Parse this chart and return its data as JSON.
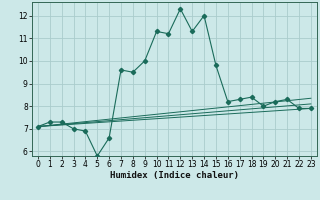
{
  "xlabel": "Humidex (Indice chaleur)",
  "bg_color": "#cce8e8",
  "grid_color": "#aacccc",
  "line_color": "#1a6b5a",
  "xlim": [
    -0.5,
    23.5
  ],
  "ylim": [
    5.8,
    12.6
  ],
  "yticks": [
    6,
    7,
    8,
    9,
    10,
    11,
    12
  ],
  "xticks": [
    0,
    1,
    2,
    3,
    4,
    5,
    6,
    7,
    8,
    9,
    10,
    11,
    12,
    13,
    14,
    15,
    16,
    17,
    18,
    19,
    20,
    21,
    22,
    23
  ],
  "series_main": {
    "x": [
      0,
      1,
      2,
      3,
      4,
      5,
      6,
      7,
      8,
      9,
      10,
      11,
      12,
      13,
      14,
      15,
      16,
      17,
      18,
      19,
      20,
      21,
      22,
      23
    ],
    "y": [
      7.1,
      7.3,
      7.3,
      7.0,
      6.9,
      5.8,
      6.6,
      9.6,
      9.5,
      10.0,
      11.3,
      11.2,
      12.3,
      11.3,
      12.0,
      9.8,
      8.2,
      8.3,
      8.4,
      8.0,
      8.2,
      8.3,
      7.9,
      7.9
    ]
  },
  "series_flat": [
    {
      "x": [
        0,
        23
      ],
      "y": [
        7.1,
        7.9
      ]
    },
    {
      "x": [
        0,
        23
      ],
      "y": [
        7.1,
        8.1
      ]
    },
    {
      "x": [
        0,
        23
      ],
      "y": [
        7.1,
        8.35
      ]
    }
  ]
}
